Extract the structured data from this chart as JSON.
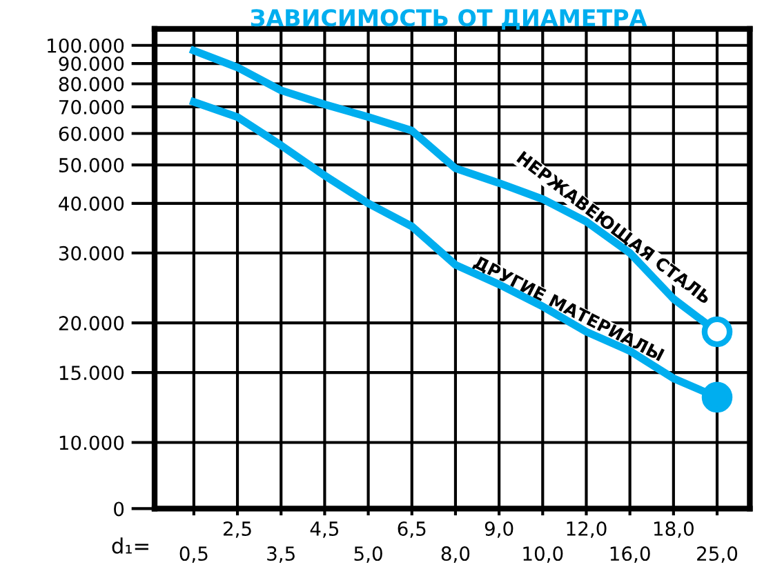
{
  "chart_data": {
    "type": "line",
    "title": "ЗАВИСИМОСТЬ ОТ ДИАМЕТРА",
    "xlabel": "d₁=",
    "categories": [
      "0,5",
      "2,5",
      "3,5",
      "4,5",
      "5,0",
      "6,5",
      "8,0",
      "9,0",
      "10,0",
      "12,0",
      "16,0",
      "18,0",
      "25,0"
    ],
    "series": [
      {
        "name": "НЕРЖАВЕЮЩАЯ СТАЛЬ",
        "color": "#00aeef",
        "values": [
          97000,
          88000,
          77000,
          71000,
          66000,
          61000,
          49000,
          45000,
          41000,
          36000,
          30000,
          23000,
          19000
        ]
      },
      {
        "name": "ДРУГИЕ МАТЕРИАЛЫ",
        "color": "#00aeef",
        "values": [
          72000,
          66000,
          56000,
          47000,
          40000,
          35000,
          28000,
          25000,
          22000,
          19000,
          17000,
          14500,
          13000
        ]
      },
      {
        "type": "scatter",
        "color": "#00aeef",
        "x": [
          "25,0"
        ],
        "values": [
          19000
        ],
        "marker": "circle"
      },
      {
        "type": "scatter",
        "color": "#00aeef",
        "x": [
          "25,0"
        ],
        "values": [
          13000
        ],
        "marker": "circle"
      }
    ],
    "log": "y",
    "ylim": [
      0,
      110000
    ],
    "yticks": [
      {
        "value": 0,
        "label": "0"
      },
      {
        "value": 10000,
        "label": "10.000"
      },
      {
        "value": 15000,
        "label": "15.000"
      },
      {
        "value": 20000,
        "label": "20.000"
      },
      {
        "value": 30000,
        "label": "30.000"
      },
      {
        "value": 40000,
        "label": "40.000"
      },
      {
        "value": 50000,
        "label": "50.000"
      },
      {
        "value": 60000,
        "label": "60.000"
      },
      {
        "value": 70000,
        "label": "70.000"
      },
      {
        "value": 80000,
        "label": "80.000"
      },
      {
        "value": 90000,
        "label": "90.000"
      },
      {
        "value": 100000,
        "label": "100.000"
      }
    ],
    "grid": true,
    "legend": false,
    "line_style": "solid"
  }
}
